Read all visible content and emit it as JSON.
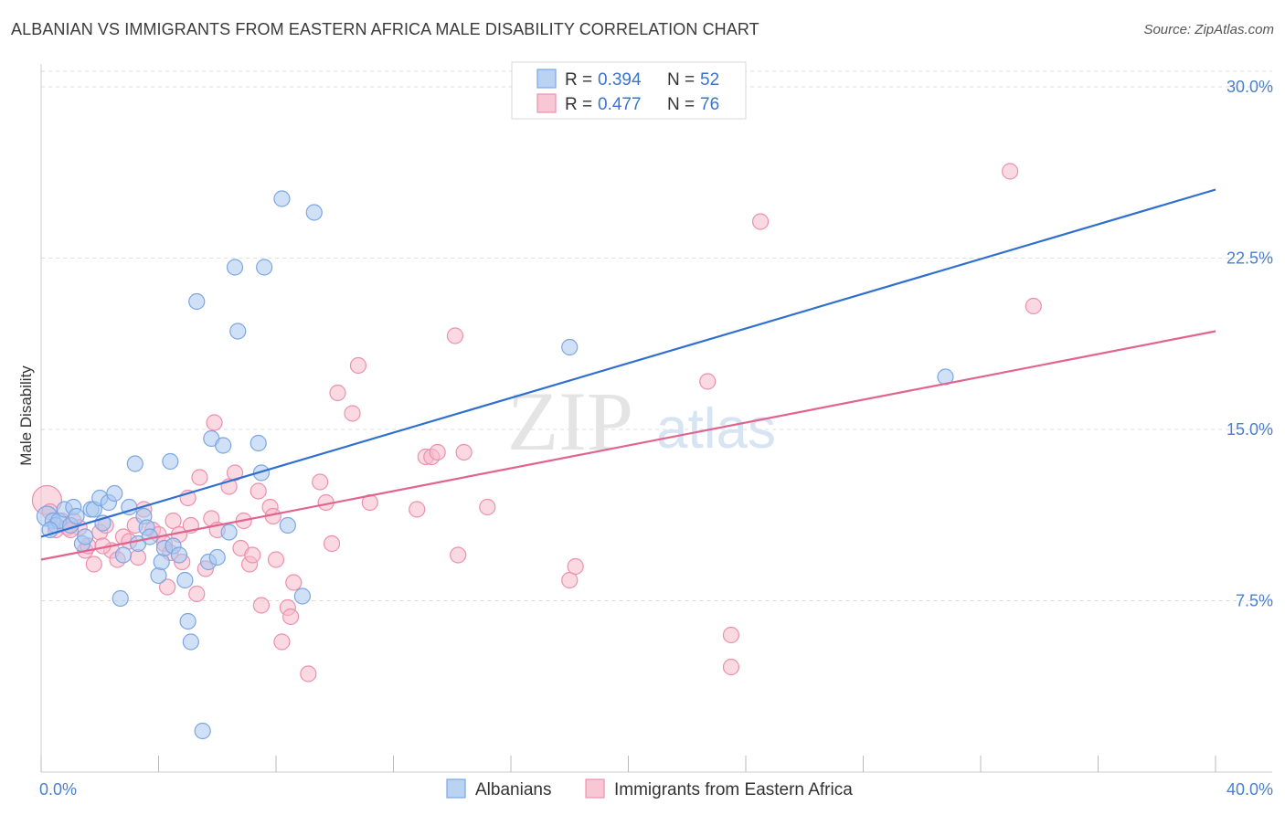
{
  "title": "ALBANIAN VS IMMIGRANTS FROM EASTERN AFRICA MALE DISABILITY CORRELATION CHART",
  "source": "Source: ZipAtlas.com",
  "watermark": {
    "zip": "ZIP",
    "atlas": "atlas"
  },
  "colors": {
    "blue_fill": "#a9c8f0",
    "blue_stroke": "#7aa6e3",
    "blue_line": "#2f6fd1",
    "pink_fill": "#f6b9cc",
    "pink_stroke": "#ee8fac",
    "pink_line": "#e2638f",
    "grid": "#dddddd",
    "tick_text": "#4a7fd0"
  },
  "legend": {
    "rows": [
      {
        "r_label": "R = ",
        "r_value": "0.394",
        "n_label": "N = ",
        "n_value": "52",
        "series": "blue"
      },
      {
        "r_label": "R = ",
        "r_value": "0.477",
        "n_label": "N = ",
        "n_value": "76",
        "series": "pink"
      }
    ]
  },
  "chart_data": {
    "type": "scatter",
    "title": "ALBANIAN VS IMMIGRANTS FROM EASTERN AFRICA MALE DISABILITY CORRELATION CHART",
    "xlabel": "",
    "ylabel": "Male Disability",
    "xlim": [
      0,
      40
    ],
    "ylim": [
      0,
      31
    ],
    "x_tick_labels": [
      {
        "value": 0,
        "label": "0.0%"
      },
      {
        "value": 40,
        "label": "40.0%"
      }
    ],
    "y_ticks": [
      {
        "value": 7.5,
        "label": "7.5%"
      },
      {
        "value": 15,
        "label": "15.0%"
      },
      {
        "value": 22.5,
        "label": "22.5%"
      },
      {
        "value": 30,
        "label": "30.0%"
      }
    ],
    "x_minor_ticks": [
      0,
      4,
      8,
      12,
      16,
      20,
      24,
      28,
      32,
      36,
      40
    ],
    "series": [
      {
        "name": "Albanians",
        "color": "blue",
        "r": 0.394,
        "n": 52,
        "trend": {
          "x0": 0,
          "y0": 10.3,
          "x1": 40,
          "y1": 25.5
        },
        "points": [
          [
            0.2,
            11.2
          ],
          [
            0.4,
            11.0
          ],
          [
            0.5,
            10.8
          ],
          [
            0.6,
            11.0
          ],
          [
            0.8,
            11.5
          ],
          [
            1.0,
            10.8
          ],
          [
            1.1,
            11.6
          ],
          [
            1.2,
            11.2
          ],
          [
            1.4,
            10.0
          ],
          [
            1.5,
            10.3
          ],
          [
            1.7,
            11.5
          ],
          [
            1.8,
            11.5
          ],
          [
            2.0,
            12.0
          ],
          [
            2.1,
            10.9
          ],
          [
            2.3,
            11.8
          ],
          [
            2.5,
            12.2
          ],
          [
            2.8,
            9.5
          ],
          [
            2.7,
            7.6
          ],
          [
            3.0,
            11.6
          ],
          [
            3.2,
            13.5
          ],
          [
            3.3,
            10.0
          ],
          [
            3.5,
            11.2
          ],
          [
            3.6,
            10.7
          ],
          [
            3.7,
            10.3
          ],
          [
            4.0,
            8.6
          ],
          [
            4.1,
            9.2
          ],
          [
            4.2,
            9.8
          ],
          [
            4.4,
            13.6
          ],
          [
            4.5,
            9.9
          ],
          [
            4.7,
            9.5
          ],
          [
            4.9,
            8.4
          ],
          [
            5.0,
            6.6
          ],
          [
            5.1,
            5.7
          ],
          [
            5.3,
            20.6
          ],
          [
            5.5,
            1.8
          ],
          [
            5.7,
            9.2
          ],
          [
            5.8,
            14.6
          ],
          [
            6.0,
            9.4
          ],
          [
            6.2,
            14.3
          ],
          [
            6.4,
            10.5
          ],
          [
            6.6,
            22.1
          ],
          [
            6.7,
            19.3
          ],
          [
            7.4,
            14.4
          ],
          [
            7.5,
            13.1
          ],
          [
            7.6,
            22.1
          ],
          [
            8.2,
            25.1
          ],
          [
            8.4,
            10.8
          ],
          [
            8.9,
            7.7
          ],
          [
            9.3,
            24.5
          ],
          [
            18.0,
            18.6
          ],
          [
            30.8,
            17.3
          ],
          [
            0.3,
            10.6
          ]
        ]
      },
      {
        "name": "Immigrants from Eastern Africa",
        "color": "pink",
        "r": 0.477,
        "n": 76,
        "trend": {
          "x0": 0,
          "y0": 9.3,
          "x1": 40,
          "y1": 19.3
        },
        "points": [
          [
            0.2,
            11.9
          ],
          [
            0.5,
            10.6
          ],
          [
            0.7,
            11.0
          ],
          [
            0.9,
            10.7
          ],
          [
            1.1,
            11.0
          ],
          [
            1.3,
            10.7
          ],
          [
            1.5,
            9.7
          ],
          [
            1.6,
            9.9
          ],
          [
            1.8,
            9.1
          ],
          [
            2.0,
            10.5
          ],
          [
            2.2,
            10.8
          ],
          [
            2.4,
            9.7
          ],
          [
            2.6,
            9.3
          ],
          [
            2.8,
            10.3
          ],
          [
            3.0,
            10.1
          ],
          [
            3.2,
            10.8
          ],
          [
            3.3,
            9.4
          ],
          [
            3.5,
            11.5
          ],
          [
            3.8,
            10.6
          ],
          [
            4.0,
            10.4
          ],
          [
            4.2,
            10.0
          ],
          [
            4.3,
            8.1
          ],
          [
            4.5,
            11.0
          ],
          [
            4.7,
            10.4
          ],
          [
            4.8,
            9.2
          ],
          [
            5.0,
            12.0
          ],
          [
            5.1,
            10.8
          ],
          [
            5.3,
            7.8
          ],
          [
            5.4,
            12.9
          ],
          [
            5.6,
            8.9
          ],
          [
            5.8,
            11.1
          ],
          [
            5.9,
            15.3
          ],
          [
            6.0,
            10.6
          ],
          [
            6.4,
            12.5
          ],
          [
            6.6,
            13.1
          ],
          [
            6.8,
            9.8
          ],
          [
            6.9,
            11.0
          ],
          [
            7.1,
            9.1
          ],
          [
            7.2,
            9.5
          ],
          [
            7.4,
            12.3
          ],
          [
            7.5,
            7.3
          ],
          [
            7.8,
            11.6
          ],
          [
            7.9,
            11.2
          ],
          [
            8.0,
            9.3
          ],
          [
            8.2,
            5.7
          ],
          [
            8.4,
            7.2
          ],
          [
            8.5,
            6.8
          ],
          [
            8.6,
            8.3
          ],
          [
            9.1,
            4.3
          ],
          [
            9.5,
            12.7
          ],
          [
            9.7,
            11.8
          ],
          [
            9.9,
            10.0
          ],
          [
            10.1,
            16.6
          ],
          [
            10.6,
            15.7
          ],
          [
            10.8,
            17.8
          ],
          [
            11.2,
            11.8
          ],
          [
            12.8,
            11.5
          ],
          [
            13.1,
            13.8
          ],
          [
            13.3,
            13.8
          ],
          [
            13.5,
            14.0
          ],
          [
            14.1,
            19.1
          ],
          [
            14.2,
            9.5
          ],
          [
            14.4,
            14.0
          ],
          [
            15.2,
            11.6
          ],
          [
            18.0,
            8.4
          ],
          [
            18.2,
            9.0
          ],
          [
            22.7,
            17.1
          ],
          [
            23.5,
            6.0
          ],
          [
            23.5,
            4.6
          ],
          [
            24.5,
            24.1
          ],
          [
            33.0,
            26.3
          ],
          [
            33.8,
            20.4
          ],
          [
            0.3,
            11.4
          ],
          [
            1.0,
            10.6
          ],
          [
            2.1,
            9.9
          ],
          [
            4.4,
            9.6
          ]
        ]
      }
    ]
  },
  "bottom_legend": [
    {
      "label": "Albanians",
      "color": "blue"
    },
    {
      "label": "Immigrants from Eastern Africa",
      "color": "pink"
    }
  ]
}
